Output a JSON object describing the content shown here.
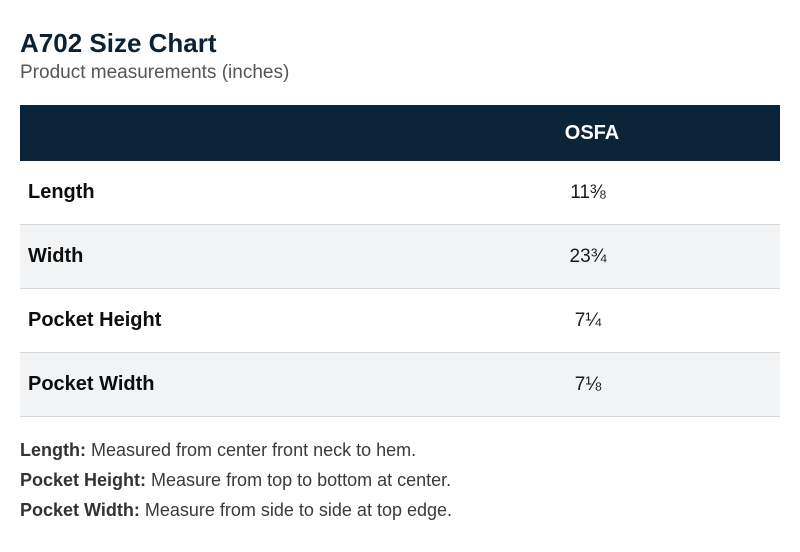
{
  "header": {
    "title": "A702 Size Chart",
    "subtitle": "Product measurements (inches)"
  },
  "table": {
    "columns": [
      "",
      "OSFA"
    ],
    "rows": [
      {
        "label": "Length",
        "value": "11⅜"
      },
      {
        "label": "Width",
        "value": "23¾"
      },
      {
        "label": "Pocket Height",
        "value": "7¼"
      },
      {
        "label": "Pocket Width",
        "value": "7⅛"
      }
    ]
  },
  "notes": [
    {
      "term": "Length:",
      "text": " Measured from center front neck to hem."
    },
    {
      "term": "Pocket Height:",
      "text": " Measure from top to bottom at center."
    },
    {
      "term": "Pocket Width:",
      "text": " Measure from side to side at top edge."
    }
  ],
  "colors": {
    "header_bg": "#0c2437",
    "title": "#0c2233",
    "alt_row_bg": "#f2f3f5"
  }
}
